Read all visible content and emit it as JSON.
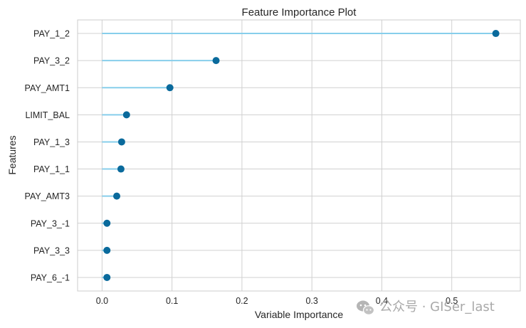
{
  "chart_data": {
    "type": "lollipop",
    "title": "Feature Importance Plot",
    "xlabel": "Variable Importance",
    "ylabel": "Features",
    "xlim": [
      -0.035,
      0.598
    ],
    "xticks": [
      0.0,
      0.1,
      0.2,
      0.3,
      0.4,
      0.5
    ],
    "xtick_labels": [
      "0.0",
      "0.1",
      "0.2",
      "0.3",
      "0.4",
      "0.5"
    ],
    "grid": true,
    "categories": [
      "PAY_1_2",
      "PAY_3_2",
      "PAY_AMT1",
      "LIMIT_BAL",
      "PAY_1_3",
      "PAY_1_1",
      "PAY_AMT3",
      "PAY_3_-1",
      "PAY_3_3",
      "PAY_6_-1"
    ],
    "values": [
      0.563,
      0.163,
      0.097,
      0.035,
      0.028,
      0.027,
      0.021,
      0.007,
      0.007,
      0.007
    ],
    "colors": {
      "stem": "#87ceeb",
      "marker": "#0a6a9c",
      "grid": "#d0d0d0",
      "axes_edge": "#cccccc",
      "background": "#ffffff"
    }
  },
  "watermark": {
    "text": "公众号 · GISer_last",
    "icon": "wechat-icon",
    "color": "#a9a9a9"
  }
}
